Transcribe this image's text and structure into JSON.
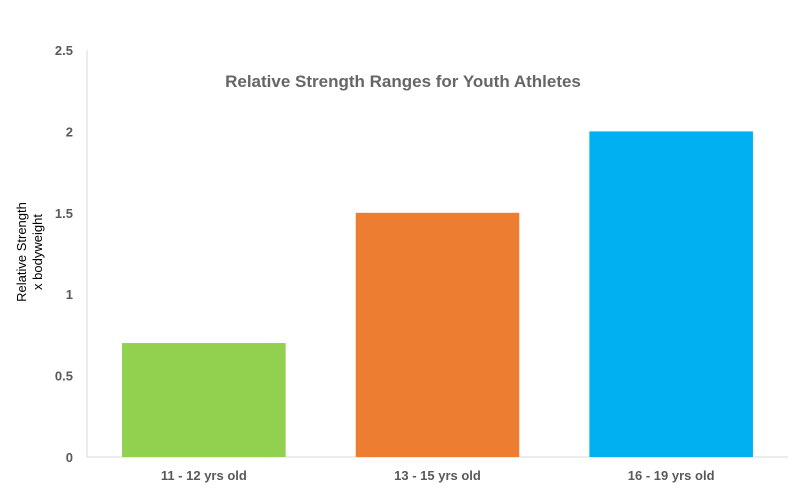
{
  "chart_data": {
    "type": "bar",
    "title": "Relative Strength Ranges for Youth Athletes",
    "xlabel": "",
    "ylabel_lines": [
      "Relative Strength",
      "x bodyweight"
    ],
    "categories": [
      "11 - 12 yrs old",
      "13 - 15 yrs old",
      "16 - 19 yrs old"
    ],
    "values": [
      0.7,
      1.5,
      2.0
    ],
    "colors": [
      "#92d050",
      "#ed7d31",
      "#00b0f0"
    ],
    "ylim": [
      0,
      2.5
    ],
    "yticks": [
      "0",
      "0.5",
      "1",
      "1.5",
      "2",
      "2.5"
    ],
    "grid": false,
    "legend": "none"
  }
}
